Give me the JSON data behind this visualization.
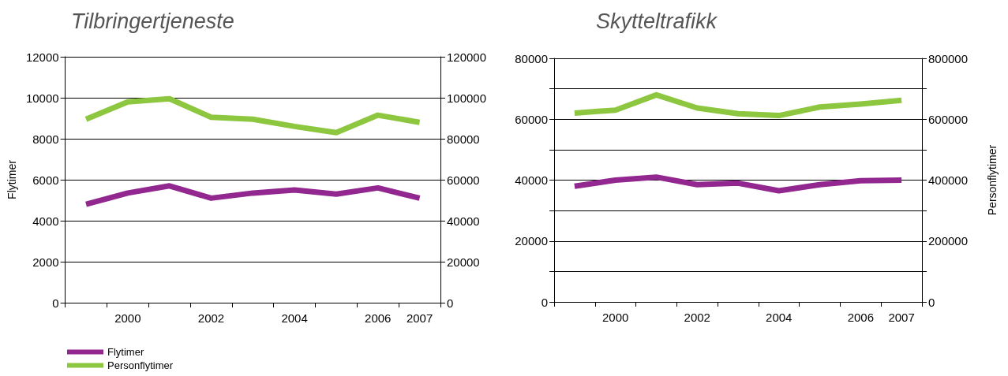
{
  "chart_data": [
    {
      "type": "line",
      "title": "Tilbringertjeneste",
      "ylabel": "Flytimer",
      "categories": [
        null,
        "2000",
        null,
        "2002",
        null,
        "2004",
        null,
        "2006",
        "2007"
      ],
      "series": [
        {
          "name": "Flytimer",
          "color": "#92278f",
          "values": [
            4800,
            5350,
            5700,
            5100,
            5350,
            5500,
            5300,
            5600,
            5100
          ]
        },
        {
          "name": "Personflytimer",
          "color": "#8dc63f",
          "axis": "y2",
          "values": [
            89500,
            98000,
            99500,
            90500,
            89500,
            86000,
            83000,
            91500,
            88000
          ]
        }
      ],
      "ylim": [
        0,
        12000
      ],
      "yticks": [
        0,
        2000,
        4000,
        6000,
        8000,
        10000,
        12000
      ],
      "y2lim": [
        0,
        120000
      ],
      "y2ticks": [
        0,
        20000,
        40000,
        60000,
        80000,
        100000,
        120000
      ],
      "grid": "y",
      "legend": "bottom left",
      "marker": "none",
      "line_style": "solid"
    },
    {
      "type": "line",
      "title": "Skytteltrafikk",
      "y2label": "Personflytimer",
      "categories": [
        null,
        "2000",
        null,
        "2002",
        null,
        "2004",
        null,
        "2006",
        "2007"
      ],
      "series": [
        {
          "color": "#92278f",
          "values": [
            38000,
            40000,
            41000,
            38500,
            39000,
            36500,
            38500,
            39800,
            40000
          ]
        },
        {
          "color": "#8dc63f",
          "axis": "y2",
          "values": [
            620000,
            630000,
            680000,
            637000,
            618000,
            612000,
            640000,
            650000,
            662000
          ]
        }
      ],
      "ylim": [
        0,
        80000
      ],
      "yticks": [
        0,
        {
          "value": 10000,
          "label": null
        },
        20000,
        {
          "value": 30000,
          "label": null
        },
        40000,
        {
          "value": 50000,
          "label": null
        },
        60000,
        {
          "value": 70000,
          "label": null
        },
        80000
      ],
      "y2lim": [
        0,
        800000
      ],
      "y2ticks": [
        0,
        {
          "value": 100000,
          "label": null
        },
        200000,
        {
          "value": 300000,
          "label": null
        },
        400000,
        {
          "value": 500000,
          "label": null
        },
        600000,
        {
          "value": 700000,
          "label": null
        },
        800000
      ],
      "grid": "y",
      "legend": false,
      "marker": "none",
      "line_style": "solid"
    }
  ]
}
